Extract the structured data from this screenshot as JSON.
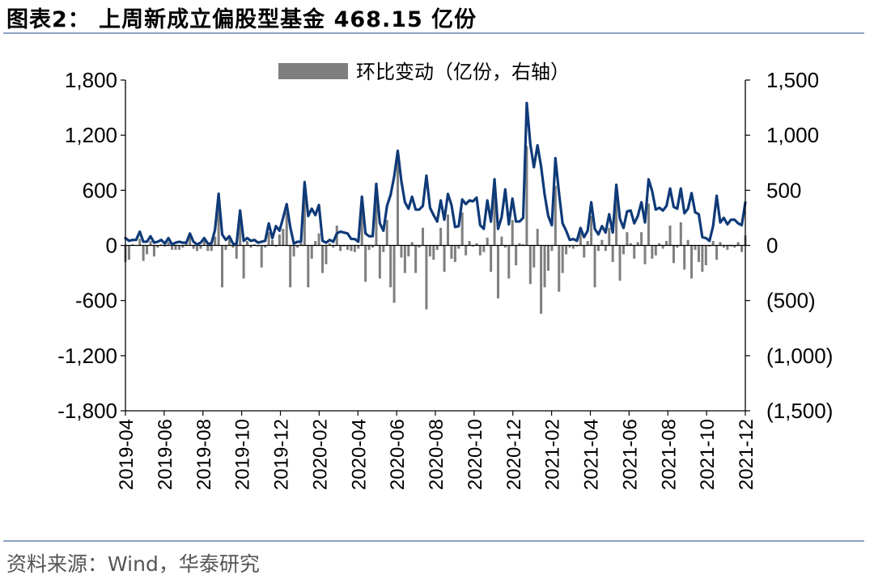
{
  "title": "图表2：   上周新成立偏股型基金 468.15 亿份",
  "source": "资料来源：Wind，华泰研究",
  "chart_data": {
    "type": "bar",
    "legend": {
      "label": "环比变动（亿份，右轴）",
      "position": "top-center"
    },
    "left_axis": {
      "min": -1800,
      "max": 1800,
      "ticks": [
        "1,800",
        "1,200",
        "600",
        "0",
        "-600",
        "-1,200",
        "-1,800"
      ]
    },
    "right_axis": {
      "min": -1500,
      "max": 1500,
      "ticks": [
        "1,500",
        "1,000",
        "500",
        "0",
        "(500)",
        "(1,000)",
        "(1,500)"
      ]
    },
    "x_tick_labels": [
      "2019-04",
      "2019-06",
      "2019-08",
      "2019-10",
      "2019-12",
      "2020-02",
      "2020-04",
      "2020-06",
      "2020-08",
      "2020-10",
      "2020-12",
      "2021-02",
      "2021-04",
      "2021-06",
      "2021-08",
      "2021-10",
      "2021-12"
    ],
    "series": [
      {
        "axis": "left",
        "type": "line",
        "color": "#0f3a78",
        "values": [
          80,
          50,
          60,
          60,
          150,
          40,
          40,
          100,
          30,
          40,
          60,
          20,
          80,
          10,
          30,
          40,
          30,
          30,
          130,
          40,
          10,
          30,
          80,
          20,
          20,
          170,
          560,
          120,
          60,
          100,
          20,
          10,
          380,
          50,
          80,
          50,
          60,
          30,
          40,
          50,
          240,
          80,
          210,
          160,
          300,
          450,
          200,
          20,
          40,
          40,
          690,
          320,
          400,
          330,
          440,
          50,
          30,
          60,
          40,
          130,
          150,
          140,
          130,
          70,
          70,
          40,
          530,
          130,
          100,
          100,
          670,
          240,
          160,
          430,
          550,
          750,
          1030,
          700,
          470,
          400,
          530,
          390,
          390,
          430,
          760,
          410,
          330,
          260,
          490,
          280,
          560,
          440,
          200,
          210,
          500,
          450,
          490,
          480,
          520,
          220,
          180,
          490,
          260,
          720,
          180,
          310,
          610,
          230,
          510,
          260,
          260,
          300,
          1550,
          1100,
          850,
          1090,
          860,
          550,
          320,
          220,
          950,
          570,
          240,
          160,
          60,
          70,
          50,
          190,
          90,
          160,
          470,
          180,
          120,
          210,
          140,
          340,
          140,
          660,
          290,
          190,
          370,
          380,
          240,
          320,
          470,
          250,
          720,
          590,
          390,
          410,
          380,
          430,
          620,
          420,
          400,
          620,
          350,
          400,
          570,
          360,
          340,
          90,
          80,
          50,
          210,
          540,
          250,
          300,
          230,
          280,
          280,
          240,
          220,
          468.15
        ]
      },
      {
        "axis": "right",
        "type": "bar",
        "color": "#7f7f7f",
        "values": [
          -150,
          -130,
          10,
          0,
          60,
          -140,
          -80,
          40,
          -100,
          -20,
          10,
          -10,
          30,
          -40,
          -40,
          -40,
          -20,
          30,
          80,
          -30,
          -50,
          -30,
          70,
          -50,
          -50,
          80,
          480,
          -380,
          -40,
          60,
          -20,
          -120,
          250,
          -300,
          40,
          -20,
          10,
          -10,
          -200,
          -20,
          120,
          50,
          -10,
          100,
          150,
          300,
          -380,
          -100,
          -20,
          20,
          550,
          -380,
          -120,
          40,
          110,
          -250,
          -170,
          20,
          -20,
          180,
          -50,
          -10,
          -40,
          -50,
          -60,
          -30,
          450,
          -330,
          -40,
          -20,
          480,
          -300,
          -60,
          230,
          -380,
          -520,
          820,
          -110,
          -250,
          -100,
          30,
          -250,
          -20,
          160,
          -580,
          -100,
          -130,
          -40,
          160,
          -240,
          280,
          -120,
          -150,
          -30,
          300,
          -90,
          40,
          -10,
          20,
          -90,
          -60,
          70,
          -240,
          460,
          -480,
          80,
          -20,
          -300,
          230,
          -180,
          20,
          10,
          900,
          -350,
          -200,
          150,
          -620,
          -380,
          -230,
          -50,
          540,
          -420,
          -250,
          -80,
          -20,
          -30,
          -10,
          120,
          -110,
          40,
          270,
          -380,
          -50,
          50,
          -50,
          160,
          -150,
          420,
          -320,
          -80,
          120,
          20,
          -120,
          30,
          120,
          -170,
          380,
          -120,
          -90,
          20,
          -30,
          40,
          180,
          -160,
          -20,
          210,
          -220,
          50,
          -300,
          -40,
          -150,
          -240,
          -180,
          -10,
          40,
          -130,
          30,
          -20,
          -40,
          -10,
          -20,
          30,
          -60,
          90
        ]
      }
    ]
  }
}
